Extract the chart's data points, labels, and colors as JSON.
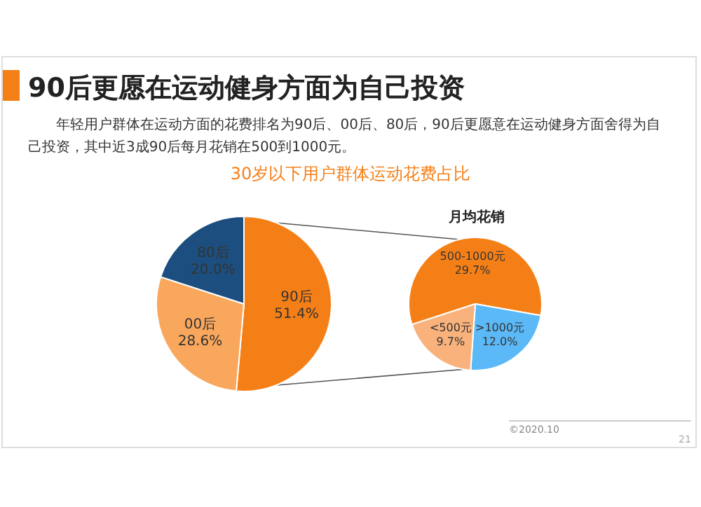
{
  "chart_data": [
    {
      "type": "pie",
      "title": "90后更愿在运动健身方面为自己投资",
      "subtitle": "30岁以下用户群体运动花费占比",
      "annotations": [
        "年轻用户群体在运动方面的花费排名为90后、00后、80后，90后更愿意在运动健身方面舍得为自己投资，其中近3成90后每月花销在500到1000元。"
      ],
      "categories": [
        "90后",
        "00后",
        "80后"
      ],
      "values": [
        51.4,
        28.6,
        20.0
      ],
      "colors": [
        "#f57f17",
        "#f9a75c",
        "#1c4f80"
      ],
      "value_labels": [
        "51.4%",
        "28.6%",
        "20.0%"
      ]
    },
    {
      "type": "pie",
      "title": "月均花销",
      "annotations": [
        "©2020.10",
        "21"
      ],
      "categories": [
        "500-1000元",
        ">1000元",
        "<500元"
      ],
      "values": [
        29.7,
        12.0,
        9.7
      ],
      "colors": [
        "#f57f17",
        "#5bb9f7",
        "#f9b27c"
      ],
      "value_labels": [
        "29.7%",
        "12.0%",
        "9.7%"
      ]
    }
  ]
}
